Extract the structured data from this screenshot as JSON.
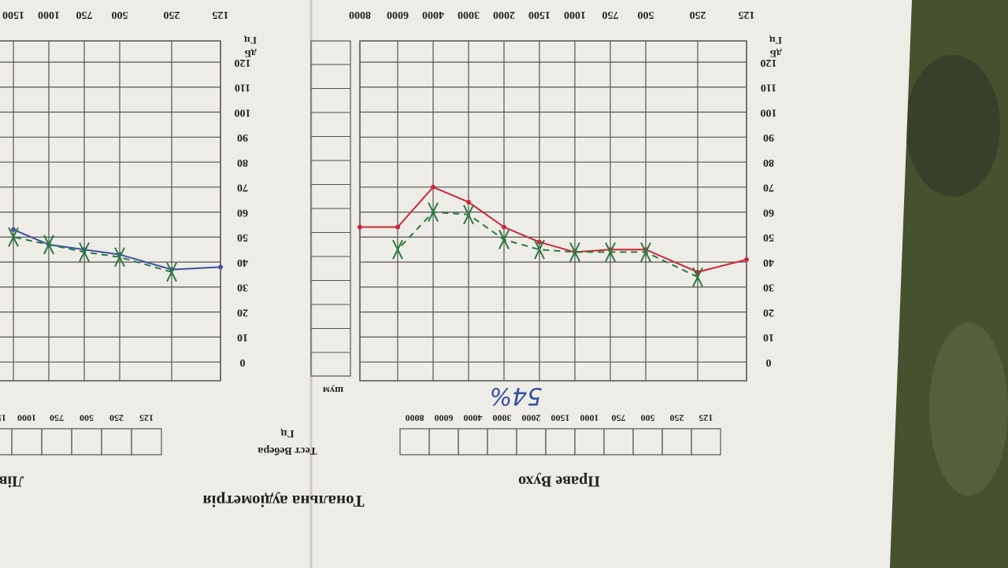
{
  "header": {
    "title": "Тональна аудіометрія",
    "weber_test": "Тест Вебера",
    "weber_unit": "Гц",
    "noise": "шум"
  },
  "chart_data": [
    {
      "type": "line",
      "title": "Праве Вухо",
      "annotation": "54%",
      "ylabel": "дБ",
      "xlabel": "Гц",
      "categories": [
        "125",
        "250",
        "500",
        "750",
        "1000",
        "1500",
        "2000",
        "3000",
        "4000",
        "6000",
        "8000"
      ],
      "ylim": [
        -7.5,
        128.5
      ],
      "yticks": [
        0,
        10,
        20,
        30,
        40,
        50,
        60,
        70,
        80,
        90,
        100,
        110,
        120
      ],
      "grid": true,
      "series": [
        {
          "color": "#c8283a",
          "marker": "dot",
          "dashed": false,
          "values": [
            41,
            36,
            45,
            45,
            44,
            48,
            54,
            64,
            70,
            54,
            54
          ]
        },
        {
          "color": "#2a7a40",
          "marker": "x",
          "dashed": true,
          "values": [
            null,
            34,
            44,
            44,
            44,
            45,
            49,
            59,
            60,
            45,
            null
          ]
        }
      ]
    },
    {
      "type": "line",
      "title": "Ліве",
      "ylabel": "дБ",
      "xlabel": "Гц",
      "categories": [
        "125",
        "250",
        "500",
        "750",
        "1000",
        "1500"
      ],
      "ylim": [
        -7.5,
        128.5
      ],
      "yticks": [
        0,
        10,
        20,
        30,
        40,
        50,
        60,
        70,
        80,
        90,
        100,
        110,
        120
      ],
      "grid": true,
      "series": [
        {
          "color": "#4050a0",
          "marker": "dot",
          "dashed": false,
          "values": [
            38,
            37,
            43,
            45,
            47,
            53
          ]
        },
        {
          "color": "#2a7a40",
          "marker": "x",
          "dashed": true,
          "values": [
            null,
            36,
            42,
            44,
            47,
            50
          ]
        }
      ]
    }
  ]
}
